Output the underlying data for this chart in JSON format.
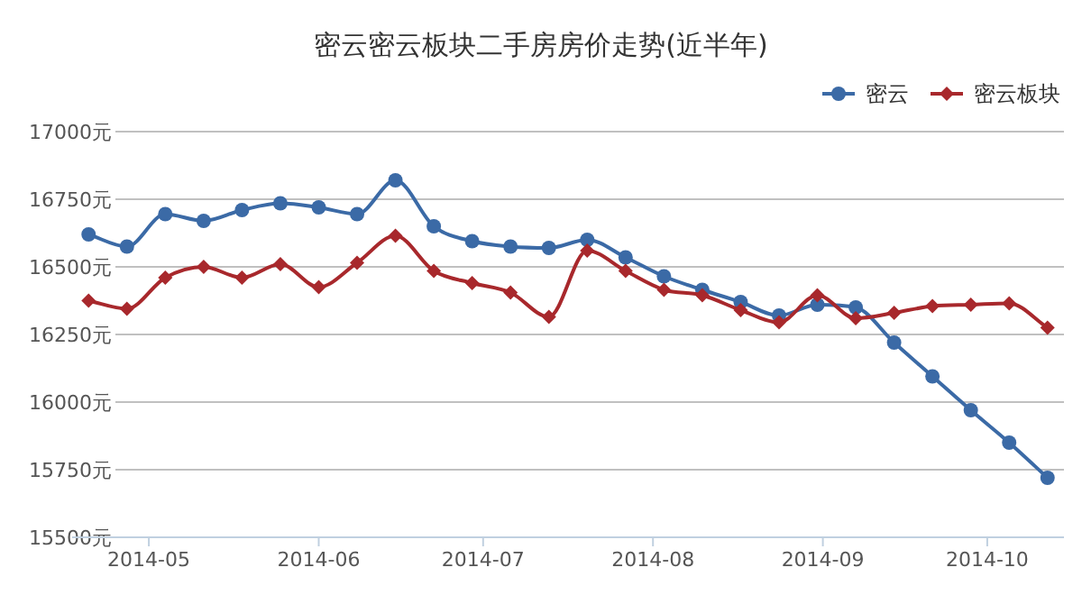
{
  "chart_data": {
    "type": "line",
    "title": "密云密云板块二手房房价走势(近半年)",
    "x": [
      "2014-04-20",
      "2014-04-27",
      "2014-05-04",
      "2014-05-11",
      "2014-05-18",
      "2014-05-25",
      "2014-06-01",
      "2014-06-08",
      "2014-06-15",
      "2014-06-22",
      "2014-06-29",
      "2014-07-06",
      "2014-07-13",
      "2014-07-20",
      "2014-07-27",
      "2014-08-03",
      "2014-08-10",
      "2014-08-17",
      "2014-08-24",
      "2014-08-31",
      "2014-09-07",
      "2014-09-14",
      "2014-09-21",
      "2014-09-28",
      "2014-10-05",
      "2014-10-12"
    ],
    "series": [
      {
        "name": "密云",
        "color": "#3b6aa6",
        "marker": "circle",
        "values": [
          16620,
          16575,
          16695,
          16670,
          16710,
          16735,
          16720,
          16695,
          16820,
          16650,
          16595,
          16575,
          16570,
          16600,
          16535,
          16465,
          16415,
          16370,
          16320,
          16360,
          16350,
          16220,
          16095,
          15970,
          15850,
          15720
        ]
      },
      {
        "name": "密云板块",
        "color": "#a8282c",
        "marker": "diamond",
        "values": [
          16375,
          16345,
          16460,
          16500,
          16460,
          16510,
          16425,
          16515,
          16615,
          16485,
          16440,
          16405,
          16315,
          16560,
          16485,
          16415,
          16395,
          16340,
          16295,
          16395,
          16310,
          16330,
          16355,
          16360,
          16365,
          16275
        ]
      }
    ],
    "xlim": [
      "2014-04-17",
      "2014-10-15"
    ],
    "xticks": [
      "2014-05",
      "2014-06",
      "2014-07",
      "2014-08",
      "2014-09",
      "2014-10"
    ],
    "ylim": [
      15500,
      17000
    ],
    "yticks": [
      {
        "value": 15500,
        "label": "15500元"
      },
      {
        "value": 15750,
        "label": "15750元"
      },
      {
        "value": 16000,
        "label": "16000元"
      },
      {
        "value": 16250,
        "label": "16250元"
      },
      {
        "value": 16500,
        "label": "16500元"
      },
      {
        "value": 16750,
        "label": "16750元"
      },
      {
        "value": 17000,
        "label": "17000元"
      }
    ],
    "grid": "y",
    "legend": "top right"
  }
}
